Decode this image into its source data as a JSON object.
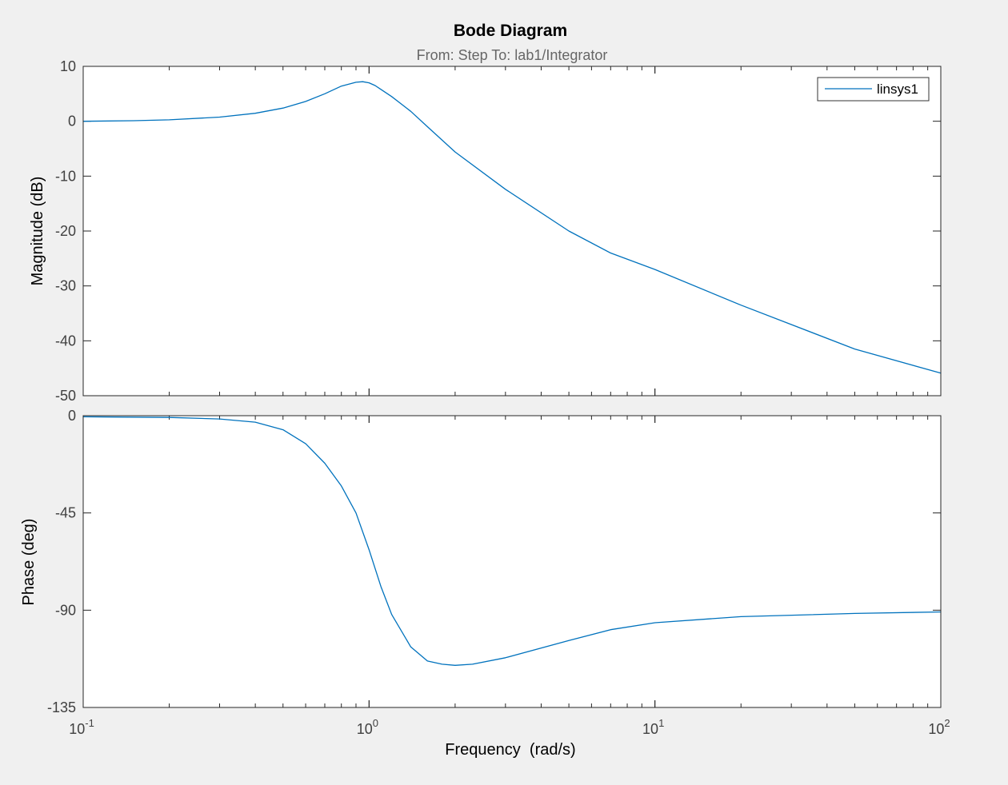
{
  "chart_data": {
    "type": "line",
    "title": "Bode Diagram",
    "subtitle": "From: Step  To: lab1/Integrator",
    "xlabel": "Frequency  (rad/s)",
    "x_scale": "log",
    "xlim": [
      0.1,
      100
    ],
    "x_ticks": [
      {
        "base": "10",
        "exp": "-1"
      },
      {
        "base": "10",
        "exp": "0"
      },
      {
        "base": "10",
        "exp": "1"
      },
      {
        "base": "10",
        "exp": "2"
      }
    ],
    "legend": {
      "entries": [
        "linsys1"
      ],
      "placement": "top-right"
    },
    "line_color": "#0072bd",
    "grid": false,
    "panels": [
      {
        "ylabel": "Magnitude (dB)",
        "ylim": [
          -50,
          10
        ],
        "y_ticks": [
          10,
          0,
          -10,
          -20,
          -30,
          -40,
          -50
        ],
        "series": [
          {
            "name": "linsys1",
            "x": [
              0.1,
              0.15,
              0.2,
              0.3,
              0.4,
              0.5,
              0.6,
              0.7,
              0.8,
              0.9,
              0.95,
              1.0,
              1.05,
              1.1,
              1.2,
              1.4,
              1.6,
              2.0,
              3.0,
              5.0,
              7.0,
              10.0,
              20.0,
              50.0,
              100.0
            ],
            "values": [
              0.0,
              0.1,
              0.25,
              0.75,
              1.45,
              2.4,
              3.6,
              5.0,
              6.4,
              7.1,
              7.2,
              7.0,
              6.5,
              5.8,
              4.5,
              1.8,
              -1.0,
              -5.6,
              -12.4,
              -20.0,
              -24.0,
              -27.0,
              -33.5,
              -41.5,
              -45.9
            ]
          }
        ]
      },
      {
        "ylabel": "Phase (deg)",
        "ylim": [
          -135,
          0
        ],
        "y_ticks": [
          0,
          -45,
          -90,
          -135
        ],
        "series": [
          {
            "name": "linsys1",
            "x": [
              0.1,
              0.2,
              0.3,
              0.4,
              0.5,
              0.6,
              0.7,
              0.8,
              0.9,
              1.0,
              1.1,
              1.2,
              1.4,
              1.6,
              1.8,
              2.0,
              2.3,
              3.0,
              5.0,
              7.0,
              10.0,
              20.0,
              50.0,
              100.0
            ],
            "values": [
              -0.5,
              -0.8,
              -1.5,
              -3.0,
              -6.5,
              -13.0,
              -22.0,
              -32.5,
              -45.0,
              -62.0,
              -79.0,
              -92.0,
              -107.0,
              -113.5,
              -115.0,
              -115.5,
              -115.0,
              -112.0,
              -104.0,
              -99.0,
              -95.8,
              -93.0,
              -91.5,
              -90.8
            ]
          }
        ]
      }
    ]
  }
}
